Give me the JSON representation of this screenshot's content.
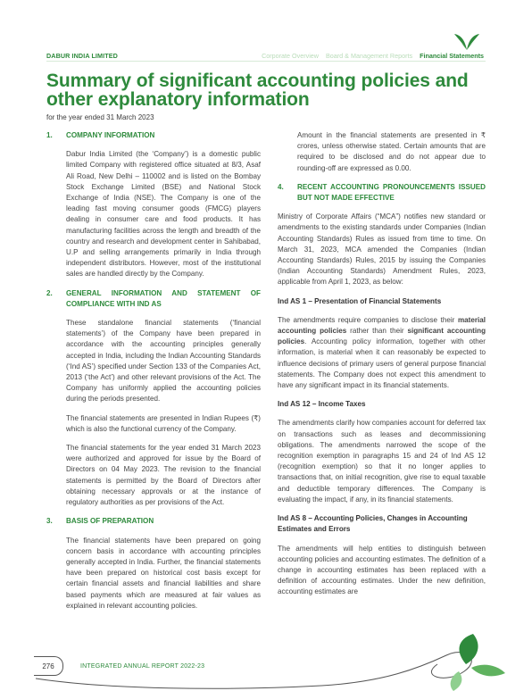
{
  "header": {
    "company": "DABUR INDIA LIMITED",
    "nav": [
      "Corporate Overview",
      "Board & Management Reports",
      "Financial Statements"
    ],
    "active_nav": "Financial Statements"
  },
  "title": "Summary of significant accounting policies and other explanatory information",
  "subtitle": "for the year ended 31 March 2023",
  "left": {
    "s1_num": "1.",
    "s1_title": "COMPANY INFORMATION",
    "s1_p1": "Dabur India Limited (the ‘Company’) is a domestic public limited Company with registered office situated at 8/3, Asaf Ali Road, New Delhi – 110002 and is listed on the Bombay Stock Exchange Limited (BSE) and National Stock Exchange of India (NSE). The Company is one of the leading fast moving consumer goods (FMCG) players dealing in consumer care and food products. It has manufacturing facilities across the length and breadth of the country and research and development center in Sahibabad, U.P and selling arrangements primarily in India through independent distributors. However, most of the institutional sales are handled directly by the Company.",
    "s2_num": "2.",
    "s2_title": "GENERAL INFORMATION AND STATEMENT OF COMPLIANCE WITH IND AS",
    "s2_p1": "These standalone financial statements (‘financial statements’) of the Company have been prepared in accordance with the accounting principles generally accepted in India, including the Indian Accounting Standards (‘Ind AS’) specified under Section 133 of the Companies Act, 2013 (‘the Act’) and other relevant provisions of the Act. The Company has uniformly applied the accounting policies during the periods presented.",
    "s2_p2": "The financial statements are presented in Indian Rupees (₹) which is also the functional currency of the Company.",
    "s2_p3": "The financial statements for the year ended 31 March 2023 were authorized and approved for issue by the Board of Directors on 04 May 2023. The revision to the financial statements is permitted by the Board of Directors after obtaining necessary approvals or at the instance of regulatory authorities as per provisions of the Act.",
    "s3_num": "3.",
    "s3_title": "BASIS OF PREPARATION",
    "s3_p1": "The financial statements have been prepared on going concern basis in accordance with accounting principles generally accepted in India. Further, the financial statements have been prepared on historical cost basis except for certain financial assets and financial liabilities and share based payments which are measured at fair values as explained in relevant accounting policies."
  },
  "right": {
    "cont_p": "Amount in the financial statements are presented in ₹ crores, unless otherwise stated. Certain amounts that are required to be disclosed and do not appear due to rounding-off are expressed as 0.00.",
    "s4_num": "4.",
    "s4_title": "RECENT ACCOUNTING PRONOUNCEMENTS ISSUED BUT NOT MADE EFFECTIVE",
    "s4_p1": "Ministry of Corporate Affairs (“MCA”) notifies new standard or amendments to the existing standards under Companies (Indian Accounting Standards) Rules as issued from time to time. On March 31, 2023, MCA amended the Companies (Indian Accounting Standards) Rules, 2015 by issuing the Companies (Indian Accounting Standards) Amendment Rules, 2023, applicable from April 1, 2023, as below:",
    "ias1_title": "Ind AS 1 – Presentation of Financial Statements",
    "ias1_a": "The amendments require companies to disclose their ",
    "ias1_b1": "material accounting policies",
    "ias1_c": " rather than their ",
    "ias1_b2": "significant accounting policies",
    "ias1_d": ". Accounting policy information, together with other information, is material when it can reasonably be expected to influence decisions of primary users of general purpose financial statements. The Company does not expect this amendment to have any significant impact in its financial statements.",
    "ias12_title": "Ind AS 12 – Income Taxes",
    "ias12_p": "The amendments clarify how companies account for deferred tax on transactions such as leases and decommissioning obligations. The amendments narrowed the scope of the recognition exemption in paragraphs 15 and 24 of Ind AS 12 (recognition exemption) so that it no longer applies to transactions that, on initial recognition, give rise to equal taxable and deductible temporary differences. The Company is evaluating the impact, if any, in its financial statements.",
    "ias8_title": "Ind AS 8 – Accounting Policies, Changes in Accounting Estimates and Errors",
    "ias8_p": "The amendments will help entities to distinguish between accounting policies and accounting estimates. The definition of a change in accounting estimates has been replaced with a definition of accounting estimates. Under the new definition, accounting estimates are"
  },
  "footer": {
    "page": "276",
    "report": "INTEGRATED ANNUAL REPORT 2022-23"
  },
  "colors": {
    "accent": "#2e8a3c",
    "nav_inactive": "#b9dcb9"
  }
}
